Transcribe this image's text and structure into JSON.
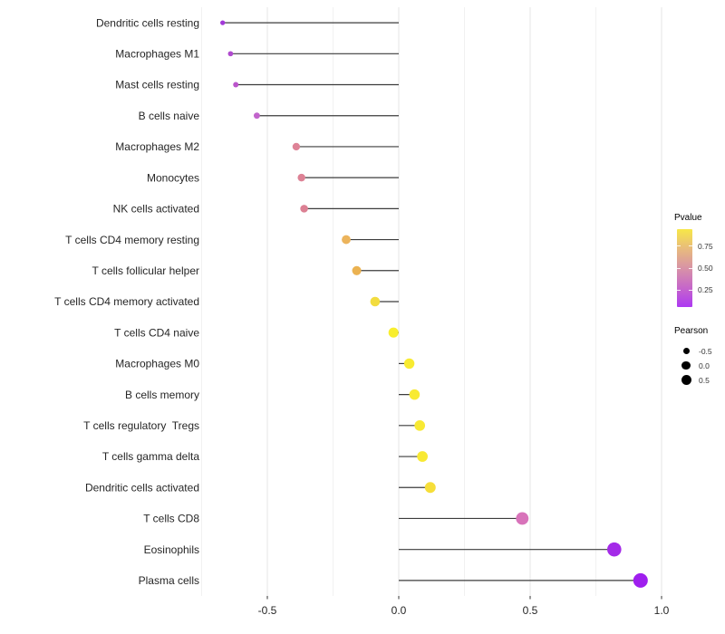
{
  "figure": {
    "background": "#FFFFFF",
    "axis_text_color": "#262626",
    "segment_color": "#3C3C3C",
    "grid_major_color": "#E4E4E4",
    "grid_minor_color": "#F1F1F1"
  },
  "chart_data": {
    "type": "scatter",
    "subtype": "lollipop",
    "orientation": "horizontal",
    "title": "",
    "xlabel": "",
    "ylabel": "",
    "xlim": [
      -0.76,
      1.04
    ],
    "grid": "vertical major+minor, no panel border",
    "x_ticks": [
      {
        "value": -0.5,
        "label": "-0.5"
      },
      {
        "value": 0.0,
        "label": "0.0"
      },
      {
        "value": 0.5,
        "label": "0.5"
      },
      {
        "value": 1.0,
        "label": "1.0"
      }
    ],
    "x_minor_ticks": [
      -0.75,
      -0.25,
      0.25,
      0.75
    ],
    "categories": [
      "Dendritic cells resting",
      "Macrophages M1",
      "Mast cells resting",
      "B cells naive",
      "Macrophages M2",
      "Monocytes",
      "NK cells activated",
      "T cells CD4 memory resting",
      "T cells follicular helper",
      "T cells CD4 memory activated",
      "T cells CD4 naive",
      "Macrophages M0",
      "B cells memory",
      "T cells regulatory  Tregs",
      "T cells gamma delta",
      "Dendritic cells activated",
      "T cells CD8",
      "Eosinophils",
      "Plasma cells"
    ],
    "series": [
      {
        "name": "Pearson correlation",
        "points": [
          {
            "label": "Dendritic cells resting",
            "pearson": -0.67,
            "color": "#A238D8"
          },
          {
            "label": "Macrophages M1",
            "pearson": -0.64,
            "color": "#B04BCF"
          },
          {
            "label": "Mast cells resting",
            "pearson": -0.62,
            "color": "#BA55CB"
          },
          {
            "label": "B cells naive",
            "pearson": -0.54,
            "color": "#C264CC"
          },
          {
            "label": "Macrophages M2",
            "pearson": -0.39,
            "color": "#DE8397"
          },
          {
            "label": "Monocytes",
            "pearson": -0.37,
            "color": "#DD8295"
          },
          {
            "label": "NK cells activated",
            "pearson": -0.36,
            "color": "#DC8093"
          },
          {
            "label": "T cells CD4 memory resting",
            "pearson": -0.2,
            "color": "#ECB45C"
          },
          {
            "label": "T cells follicular helper",
            "pearson": -0.16,
            "color": "#EBB251"
          },
          {
            "label": "T cells CD4 memory activated",
            "pearson": -0.09,
            "color": "#F2DC3F"
          },
          {
            "label": "T cells CD4 naive",
            "pearson": -0.02,
            "color": "#F8EE2E"
          },
          {
            "label": "Macrophages M0",
            "pearson": 0.04,
            "color": "#F8EB31"
          },
          {
            "label": "B cells memory",
            "pearson": 0.06,
            "color": "#F8EA32"
          },
          {
            "label": "T cells regulatory  Tregs",
            "pearson": 0.08,
            "color": "#F8E933"
          },
          {
            "label": "T cells gamma delta",
            "pearson": 0.09,
            "color": "#F8E933"
          },
          {
            "label": "Dendritic cells activated",
            "pearson": 0.12,
            "color": "#F6DE39"
          },
          {
            "label": "T cells CD8",
            "pearson": 0.47,
            "color": "#D873BA"
          },
          {
            "label": "Eosinophils",
            "pearson": 0.82,
            "color": "#A42BE8"
          },
          {
            "label": "Plasma cells",
            "pearson": 0.92,
            "color": "#9F1FEE"
          }
        ]
      }
    ],
    "legends": {
      "pvalue": {
        "title": "Pvalue",
        "position": "right",
        "gradient_stops": [
          "#F7E748",
          "#E8BB7D",
          "#D893A6",
          "#C667C9",
          "#AD39F3"
        ],
        "ticks": [
          {
            "label": "0.75",
            "pos_pct": 22
          },
          {
            "label": "0.50",
            "pos_pct": 50
          },
          {
            "label": "0.25",
            "pos_pct": 78
          }
        ]
      },
      "pearson": {
        "title": "Pearson",
        "position": "right",
        "entries": [
          {
            "label": "-0.5",
            "size": 3.5
          },
          {
            "label": "0.0",
            "size": 4.6
          },
          {
            "label": "0.5",
            "size": 5.5
          }
        ]
      }
    }
  }
}
